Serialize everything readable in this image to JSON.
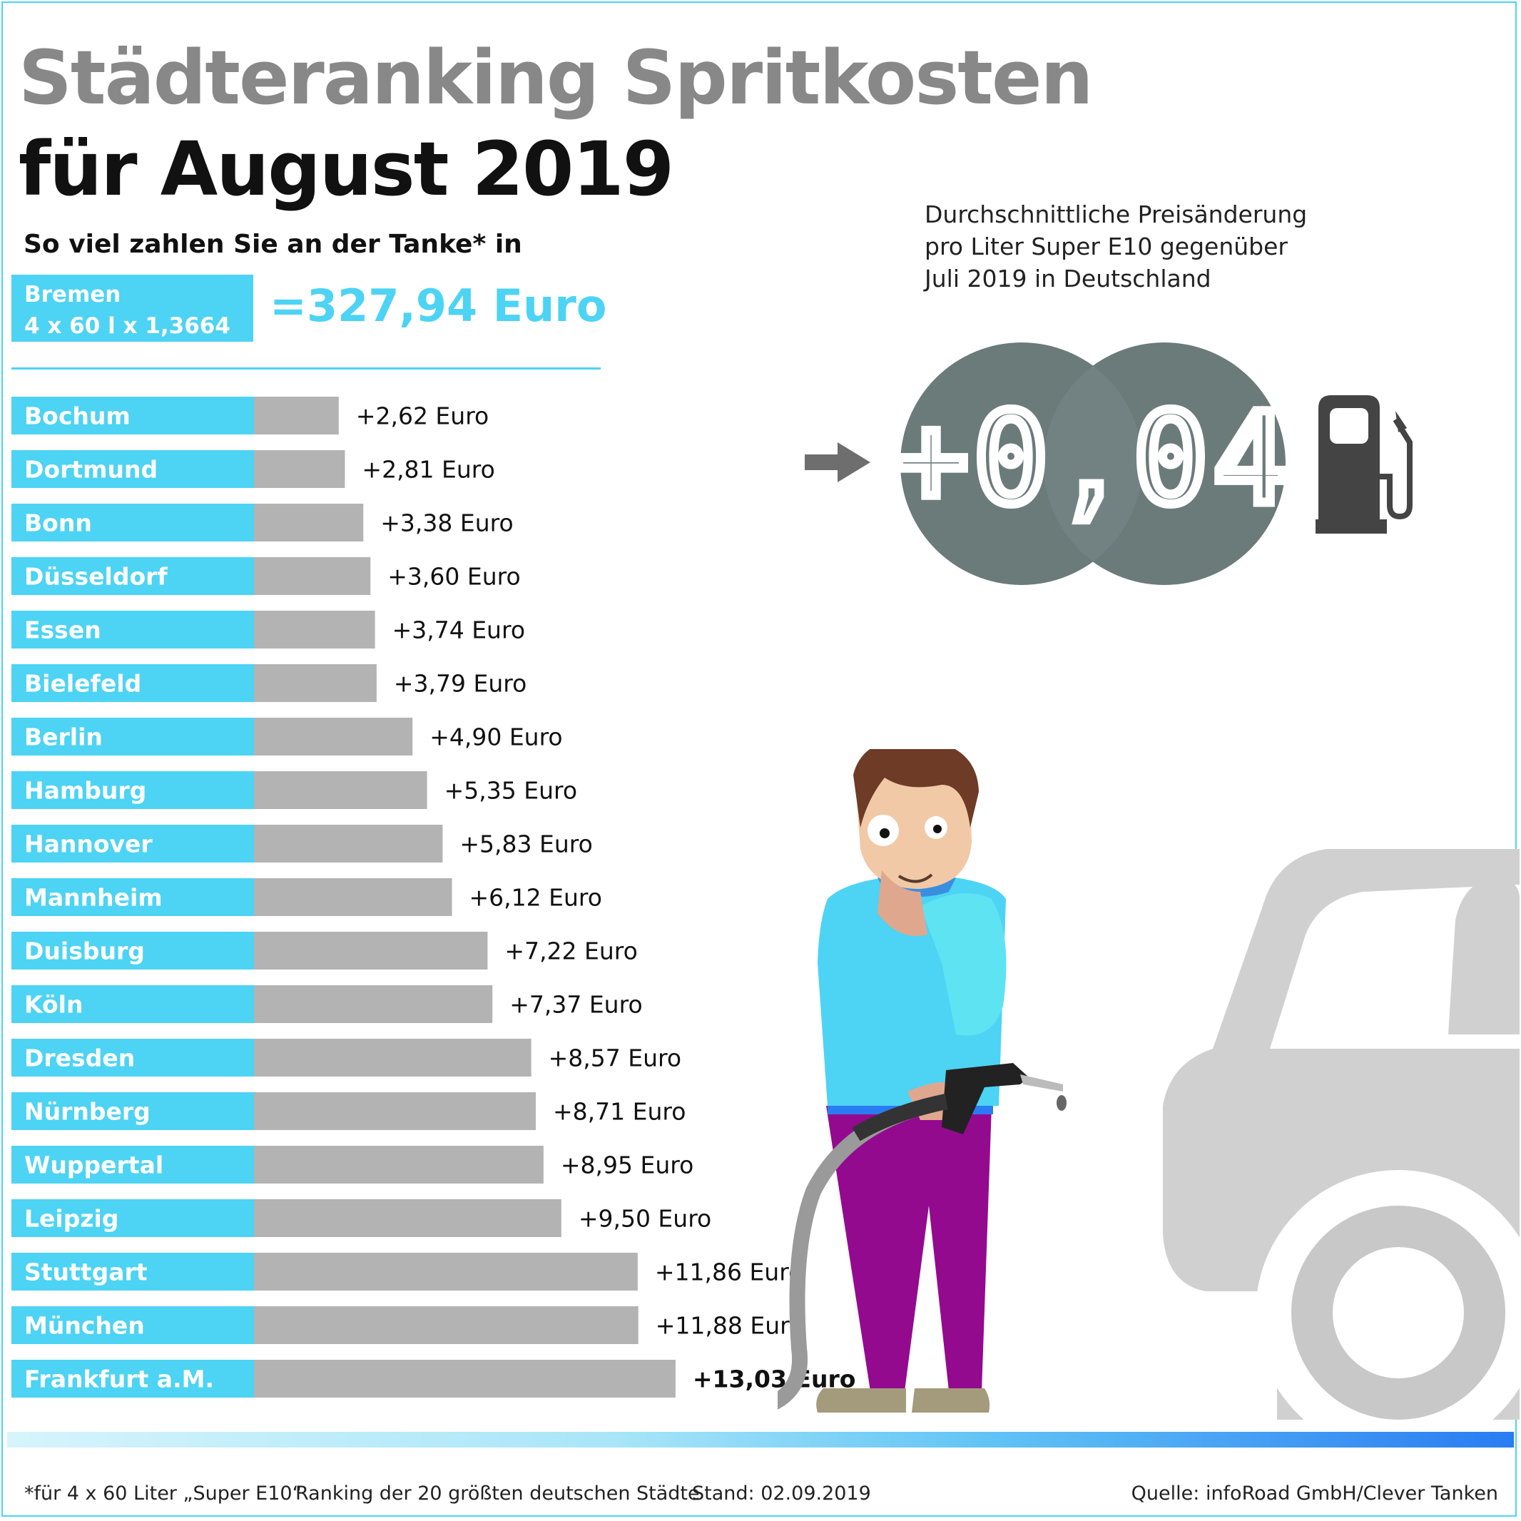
{
  "title_line1": "Städteranking Spritkosten",
  "title_line2": "für August 2019",
  "subtitle": "So viel zahlen Sie an der Tanke* in",
  "reference": {
    "city": "Bremen",
    "formula": "4 x 60 l x 1,3664 €",
    "total": "=327,94 Euro"
  },
  "note_lines": [
    "Durchschnittliche Preisänderung",
    "pro Liter Super E10 gegenüber",
    "Juli 2019 in Deutschland"
  ],
  "price_change": "+0,04",
  "icons": [
    "arrow-right-icon",
    "fuel-pump-icon"
  ],
  "colors": {
    "accent": "#4dd3f3",
    "bar": "#b3b3b3",
    "badge": "#6b7b7a"
  },
  "chart_data": {
    "type": "bar",
    "orientation": "horizontal",
    "categories": [
      "Bochum",
      "Dortmund",
      "Bonn",
      "Düsseldorf",
      "Essen",
      "Bielefeld",
      "Berlin",
      "Hamburg",
      "Hannover",
      "Mannheim",
      "Duisburg",
      "Köln",
      "Dresden",
      "Nürnberg",
      "Wuppertal",
      "Leipzig",
      "Stuttgart",
      "München",
      "Frankfurt a.M."
    ],
    "values": [
      2.62,
      2.81,
      3.38,
      3.6,
      3.74,
      3.79,
      4.9,
      5.35,
      5.83,
      6.12,
      7.22,
      7.37,
      8.57,
      8.71,
      8.95,
      9.5,
      11.86,
      11.88,
      13.03
    ],
    "value_labels": [
      "+2,62 Euro",
      "+2,81 Euro",
      "+3,38 Euro",
      "+3,60 Euro",
      "+3,74 Euro",
      "+3,79 Euro",
      "+4,90 Euro",
      "+5,35 Euro",
      "+5,83 Euro",
      "+6,12 Euro",
      "+7,22 Euro",
      "+7,37 Euro",
      "+8,57 Euro",
      "+8,71 Euro",
      "+8,95 Euro",
      "+9,50 Euro",
      "+11,86 Euro",
      "+11,88 Euro",
      "+13,03 Euro"
    ],
    "unit": "Euro",
    "highlight": "Frankfurt a.M."
  },
  "footer": {
    "footnote": "*für 4 x 60 Liter „Super E10“",
    "ranking": "Ranking der 20 größten deutschen Städte",
    "date": "Stand: 02.09.2019",
    "source": "Quelle: infoRoad GmbH/Clever Tanken"
  }
}
